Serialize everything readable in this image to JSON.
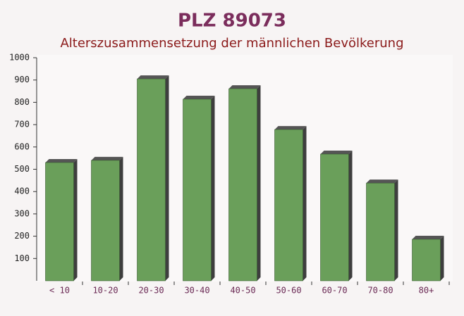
{
  "chart_data": {
    "type": "bar",
    "title": "PLZ 89073",
    "subtitle": "Alterszusammensetzung der männlichen Bevölkerung",
    "categories": [
      "< 10",
      "10-20",
      "20-30",
      "30-40",
      "40-50",
      "50-60",
      "60-70",
      "70-80",
      "80+"
    ],
    "values": [
      530,
      540,
      905,
      814,
      861,
      678,
      568,
      438,
      186
    ],
    "color": "#6a9f5a",
    "ylim": [
      0,
      1000
    ],
    "yticks": [
      100,
      200,
      300,
      400,
      500,
      600,
      700,
      800,
      900,
      1000
    ]
  }
}
